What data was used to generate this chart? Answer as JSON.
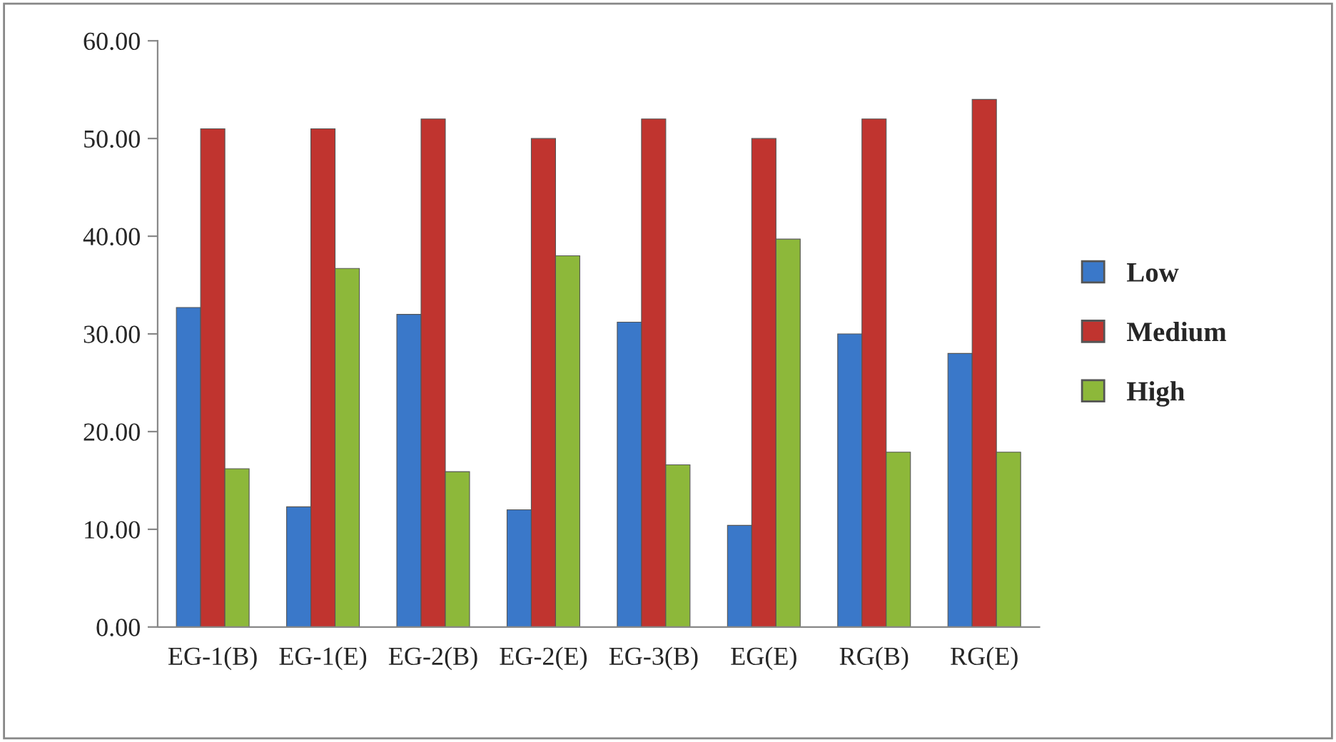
{
  "chart_data": {
    "type": "bar",
    "categories": [
      "EG-1(B)",
      "EG-1(E)",
      "EG-2(B)",
      "EG-2(E)",
      "EG-3(B)",
      "EG(E)",
      "RG(B)",
      "RG(E)"
    ],
    "series": [
      {
        "name": "Low",
        "color": "#3a78c9",
        "values": [
          32.7,
          12.3,
          32.0,
          12.0,
          31.2,
          10.4,
          30.0,
          28.0
        ]
      },
      {
        "name": "Medium",
        "color": "#c0342f",
        "values": [
          51.0,
          51.0,
          52.0,
          50.0,
          52.0,
          50.0,
          52.0,
          54.0
        ]
      },
      {
        "name": "High",
        "color": "#8db83a",
        "values": [
          16.2,
          36.7,
          15.9,
          38.0,
          16.6,
          39.7,
          17.9,
          17.9
        ]
      }
    ],
    "ylim": [
      0,
      60
    ],
    "yticks": [
      {
        "value": 0,
        "label": "0.00"
      },
      {
        "value": 10,
        "label": "10.00"
      },
      {
        "value": 20,
        "label": "20.00"
      },
      {
        "value": 30,
        "label": "30.00"
      },
      {
        "value": 40,
        "label": "40.00"
      },
      {
        "value": 50,
        "label": "50.00"
      },
      {
        "value": 60,
        "label": "60.00"
      }
    ],
    "grid": false,
    "legend": "right"
  }
}
